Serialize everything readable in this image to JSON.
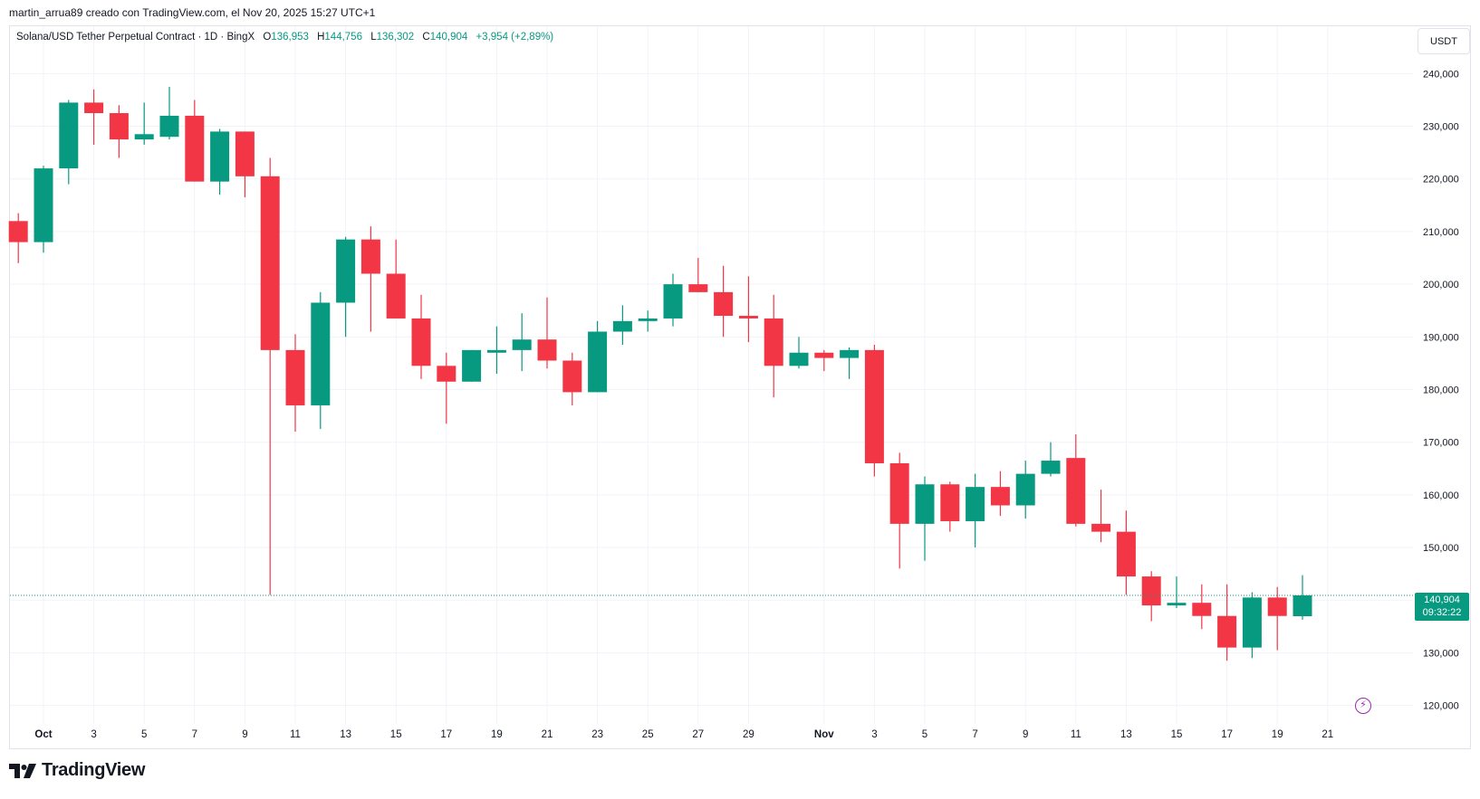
{
  "header": {
    "credit": "martin_arrua89 creado con TradingView.com, el Nov 20, 2025 15:27 UTC+1"
  },
  "legend": {
    "symbol": "Solana/USD Tether Perpetual Contract · 1D · BingX",
    "open_label": "O",
    "open": "136,953",
    "high_label": "H",
    "high": "144,756",
    "low_label": "L",
    "low": "136,302",
    "close_label": "C",
    "close": "140,904",
    "change": "+3,954 (+2,89%)"
  },
  "axis": {
    "currency": "USDT"
  },
  "last_price": {
    "price": "140,904",
    "countdown": "09:32:22"
  },
  "footer": {
    "brand": "TradingView"
  },
  "colors": {
    "up": "#089981",
    "down": "#f23645",
    "grid": "#f0f3fa",
    "text": "#131722",
    "marker": "#9c27b0"
  },
  "icons": {
    "flash": "lightning-icon",
    "logo": "tradingview-logo-icon"
  },
  "chart_data": {
    "type": "candlestick",
    "y_ticks": [
      120000,
      130000,
      140000,
      150000,
      160000,
      170000,
      180000,
      190000,
      200000,
      210000,
      220000,
      230000,
      240000
    ],
    "y_tick_labels": [
      "120,000",
      "130,000",
      "",
      "150,000",
      "160,000",
      "170,000",
      "180,000",
      "190,000",
      "200,000",
      "210,000",
      "220,000",
      "230,000",
      "240,000"
    ],
    "ylim": [
      116500,
      249000
    ],
    "x_ticks": [
      {
        "date": "2025-10-01",
        "label": "Oct",
        "bold": true
      },
      {
        "date": "2025-10-03",
        "label": "3"
      },
      {
        "date": "2025-10-05",
        "label": "5"
      },
      {
        "date": "2025-10-07",
        "label": "7"
      },
      {
        "date": "2025-10-09",
        "label": "9"
      },
      {
        "date": "2025-10-11",
        "label": "11"
      },
      {
        "date": "2025-10-13",
        "label": "13"
      },
      {
        "date": "2025-10-15",
        "label": "15"
      },
      {
        "date": "2025-10-17",
        "label": "17"
      },
      {
        "date": "2025-10-19",
        "label": "19"
      },
      {
        "date": "2025-10-21",
        "label": "21"
      },
      {
        "date": "2025-10-23",
        "label": "23"
      },
      {
        "date": "2025-10-25",
        "label": "25"
      },
      {
        "date": "2025-10-27",
        "label": "27"
      },
      {
        "date": "2025-10-29",
        "label": "29"
      },
      {
        "date": "2025-11-01",
        "label": "Nov",
        "bold": true
      },
      {
        "date": "2025-11-03",
        "label": "3"
      },
      {
        "date": "2025-11-05",
        "label": "5"
      },
      {
        "date": "2025-11-07",
        "label": "7"
      },
      {
        "date": "2025-11-09",
        "label": "9"
      },
      {
        "date": "2025-11-11",
        "label": "11"
      },
      {
        "date": "2025-11-13",
        "label": "13"
      },
      {
        "date": "2025-11-15",
        "label": "15"
      },
      {
        "date": "2025-11-17",
        "label": "17"
      },
      {
        "date": "2025-11-19",
        "label": "19"
      },
      {
        "date": "2025-11-21",
        "label": "21"
      }
    ],
    "candles": [
      {
        "date": "2025-09-30",
        "open": 212000,
        "high": 213500,
        "low": 204000,
        "close": 208000
      },
      {
        "date": "2025-10-01",
        "open": 208000,
        "high": 222500,
        "low": 206000,
        "close": 222000
      },
      {
        "date": "2025-10-02",
        "open": 222000,
        "high": 235000,
        "low": 219000,
        "close": 234500
      },
      {
        "date": "2025-10-03",
        "open": 234500,
        "high": 237000,
        "low": 226500,
        "close": 232500
      },
      {
        "date": "2025-10-04",
        "open": 232500,
        "high": 234000,
        "low": 224000,
        "close": 227500
      },
      {
        "date": "2025-10-05",
        "open": 227500,
        "high": 234500,
        "low": 226500,
        "close": 228500
      },
      {
        "date": "2025-10-06",
        "open": 228000,
        "high": 237500,
        "low": 227500,
        "close": 232000
      },
      {
        "date": "2025-10-07",
        "open": 232000,
        "high": 235000,
        "low": 219500,
        "close": 219500
      },
      {
        "date": "2025-10-08",
        "open": 219500,
        "high": 229500,
        "low": 217000,
        "close": 229000
      },
      {
        "date": "2025-10-09",
        "open": 229000,
        "high": 229000,
        "low": 216500,
        "close": 220500
      },
      {
        "date": "2025-10-10",
        "open": 220500,
        "high": 224000,
        "low": 141000,
        "close": 187500
      },
      {
        "date": "2025-10-11",
        "open": 187500,
        "high": 190500,
        "low": 172000,
        "close": 177000
      },
      {
        "date": "2025-10-12",
        "open": 177000,
        "high": 198500,
        "low": 172500,
        "close": 196500
      },
      {
        "date": "2025-10-13",
        "open": 196500,
        "high": 209000,
        "low": 190000,
        "close": 208500
      },
      {
        "date": "2025-10-14",
        "open": 208500,
        "high": 211000,
        "low": 191000,
        "close": 202000
      },
      {
        "date": "2025-10-15",
        "open": 202000,
        "high": 208500,
        "low": 193500,
        "close": 193500
      },
      {
        "date": "2025-10-16",
        "open": 193500,
        "high": 198000,
        "low": 182000,
        "close": 184500
      },
      {
        "date": "2025-10-17",
        "open": 184500,
        "high": 187000,
        "low": 173500,
        "close": 181500
      },
      {
        "date": "2025-10-18",
        "open": 181500,
        "high": 187500,
        "low": 181500,
        "close": 187500
      },
      {
        "date": "2025-10-19",
        "open": 187000,
        "high": 192000,
        "low": 183000,
        "close": 187500
      },
      {
        "date": "2025-10-20",
        "open": 187500,
        "high": 194500,
        "low": 183500,
        "close": 189500
      },
      {
        "date": "2025-10-21",
        "open": 189500,
        "high": 197500,
        "low": 184000,
        "close": 185500
      },
      {
        "date": "2025-10-22",
        "open": 185500,
        "high": 187000,
        "low": 177000,
        "close": 179500
      },
      {
        "date": "2025-10-23",
        "open": 179500,
        "high": 193000,
        "low": 179500,
        "close": 191000
      },
      {
        "date": "2025-10-24",
        "open": 191000,
        "high": 196000,
        "low": 188500,
        "close": 193000
      },
      {
        "date": "2025-10-25",
        "open": 193000,
        "high": 195000,
        "low": 191000,
        "close": 193500
      },
      {
        "date": "2025-10-26",
        "open": 193500,
        "high": 202000,
        "low": 192000,
        "close": 200000
      },
      {
        "date": "2025-10-27",
        "open": 200000,
        "high": 205000,
        "low": 198500,
        "close": 198500
      },
      {
        "date": "2025-10-28",
        "open": 198500,
        "high": 203500,
        "low": 190000,
        "close": 194000
      },
      {
        "date": "2025-10-29",
        "open": 194000,
        "high": 201500,
        "low": 189000,
        "close": 193500
      },
      {
        "date": "2025-10-30",
        "open": 193500,
        "high": 198000,
        "low": 178500,
        "close": 184500
      },
      {
        "date": "2025-10-31",
        "open": 184500,
        "high": 190000,
        "low": 184000,
        "close": 187000
      },
      {
        "date": "2025-11-01",
        "open": 187000,
        "high": 187500,
        "low": 183500,
        "close": 186000
      },
      {
        "date": "2025-11-02",
        "open": 186000,
        "high": 188000,
        "low": 182000,
        "close": 187500
      },
      {
        "date": "2025-11-03",
        "open": 187500,
        "high": 188500,
        "low": 163500,
        "close": 166000
      },
      {
        "date": "2025-11-04",
        "open": 166000,
        "high": 168000,
        "low": 146000,
        "close": 154500
      },
      {
        "date": "2025-11-05",
        "open": 154500,
        "high": 163500,
        "low": 147500,
        "close": 162000
      },
      {
        "date": "2025-11-06",
        "open": 162000,
        "high": 162500,
        "low": 153000,
        "close": 155000
      },
      {
        "date": "2025-11-07",
        "open": 155000,
        "high": 164000,
        "low": 150000,
        "close": 161500
      },
      {
        "date": "2025-11-08",
        "open": 161500,
        "high": 164500,
        "low": 156000,
        "close": 158000
      },
      {
        "date": "2025-11-09",
        "open": 158000,
        "high": 166500,
        "low": 155500,
        "close": 164000
      },
      {
        "date": "2025-11-10",
        "open": 164000,
        "high": 170000,
        "low": 163500,
        "close": 166500
      },
      {
        "date": "2025-11-11",
        "open": 167000,
        "high": 171500,
        "low": 154000,
        "close": 154500
      },
      {
        "date": "2025-11-12",
        "open": 154500,
        "high": 161000,
        "low": 151000,
        "close": 153000
      },
      {
        "date": "2025-11-13",
        "open": 153000,
        "high": 157000,
        "low": 141000,
        "close": 144500
      },
      {
        "date": "2025-11-14",
        "open": 144500,
        "high": 145500,
        "low": 136000,
        "close": 139000
      },
      {
        "date": "2025-11-15",
        "open": 139000,
        "high": 144500,
        "low": 138500,
        "close": 139500
      },
      {
        "date": "2025-11-16",
        "open": 139500,
        "high": 143000,
        "low": 134500,
        "close": 137000
      },
      {
        "date": "2025-11-17",
        "open": 137000,
        "high": 143000,
        "low": 128500,
        "close": 131000
      },
      {
        "date": "2025-11-18",
        "open": 131000,
        "high": 141500,
        "low": 129000,
        "close": 140500
      },
      {
        "date": "2025-11-19",
        "open": 140500,
        "high": 142500,
        "low": 130500,
        "close": 137000
      },
      {
        "date": "2025-11-20",
        "open": 136953,
        "high": 144756,
        "low": 136302,
        "close": 140904
      }
    ]
  }
}
